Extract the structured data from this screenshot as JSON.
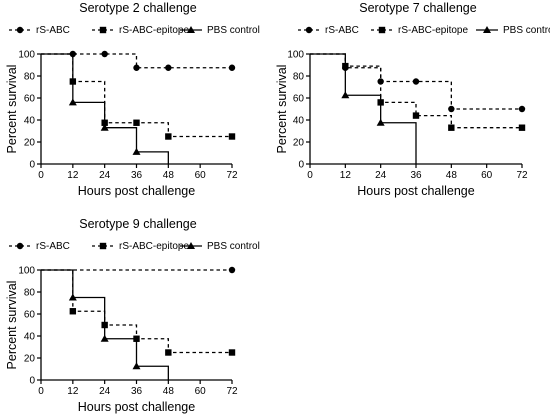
{
  "chart_data": [
    {
      "type": "line",
      "step": true,
      "title": "Serotype 2 challenge",
      "xlabel": "Hours post challenge",
      "ylabel": "Percent survival",
      "xlim": [
        0,
        72
      ],
      "ylim": [
        0,
        100
      ],
      "xticks": [
        "0",
        "12",
        "24",
        "36",
        "48",
        "60",
        "72"
      ],
      "yticks": [
        "0",
        "20",
        "40",
        "60",
        "80",
        "100"
      ],
      "legend": "top",
      "series": [
        {
          "name": "rS-ABC",
          "marker": "circle",
          "dash": true,
          "x": [
            0,
            12,
            24,
            36,
            48,
            72
          ],
          "values": [
            100,
            100,
            100,
            87.5,
            87.5,
            87.5
          ]
        },
        {
          "name": "rS-ABC-epitope",
          "marker": "square",
          "dash": true,
          "x": [
            0,
            12,
            24,
            36,
            48,
            72
          ],
          "values": [
            100,
            75,
            37.5,
            37.5,
            25,
            25
          ]
        },
        {
          "name": "PBS control",
          "marker": "triangle",
          "dash": false,
          "x": [
            0,
            12,
            24,
            36,
            48
          ],
          "values": [
            100,
            56,
            33,
            11,
            0
          ]
        }
      ]
    },
    {
      "type": "line",
      "step": true,
      "title": "Serotype 7 challenge",
      "xlabel": "Hours post challenge",
      "ylabel": "Percent survival",
      "xlim": [
        0,
        72
      ],
      "ylim": [
        0,
        100
      ],
      "xticks": [
        "0",
        "12",
        "24",
        "36",
        "48",
        "60",
        "72"
      ],
      "yticks": [
        "0",
        "20",
        "40",
        "60",
        "80",
        "100"
      ],
      "legend": "top",
      "series": [
        {
          "name": "rS-ABC",
          "marker": "circle",
          "dash": true,
          "x": [
            0,
            12,
            24,
            36,
            48,
            72
          ],
          "values": [
            100,
            87.5,
            75,
            75,
            50,
            50
          ]
        },
        {
          "name": "rS-ABC-epitope",
          "marker": "square",
          "dash": true,
          "x": [
            0,
            12,
            24,
            36,
            48,
            72
          ],
          "values": [
            100,
            89,
            56,
            44,
            33,
            33
          ]
        },
        {
          "name": "PBS control",
          "marker": "triangle",
          "dash": false,
          "x": [
            0,
            12,
            24,
            36
          ],
          "values": [
            100,
            62.5,
            37.5,
            0
          ]
        }
      ]
    },
    {
      "type": "line",
      "step": true,
      "title": "Serotype 9 challenge",
      "xlabel": "Hours post challenge",
      "ylabel": "Percent survival",
      "xlim": [
        0,
        72
      ],
      "ylim": [
        0,
        100
      ],
      "xticks": [
        "0",
        "12",
        "24",
        "36",
        "48",
        "60",
        "72"
      ],
      "yticks": [
        "0",
        "20",
        "40",
        "60",
        "80",
        "100"
      ],
      "legend": "top",
      "series": [
        {
          "name": "rS-ABC",
          "marker": "circle",
          "dash": true,
          "x": [
            0,
            72
          ],
          "values": [
            100,
            100
          ]
        },
        {
          "name": "rS-ABC-epitope",
          "marker": "square",
          "dash": true,
          "x": [
            0,
            12,
            24,
            36,
            48,
            72
          ],
          "values": [
            100,
            62.5,
            50,
            37.5,
            25,
            25
          ]
        },
        {
          "name": "PBS control",
          "marker": "triangle",
          "dash": false,
          "x": [
            0,
            12,
            24,
            36,
            48
          ],
          "values": [
            100,
            75,
            37.5,
            12.5,
            0
          ]
        }
      ]
    }
  ]
}
